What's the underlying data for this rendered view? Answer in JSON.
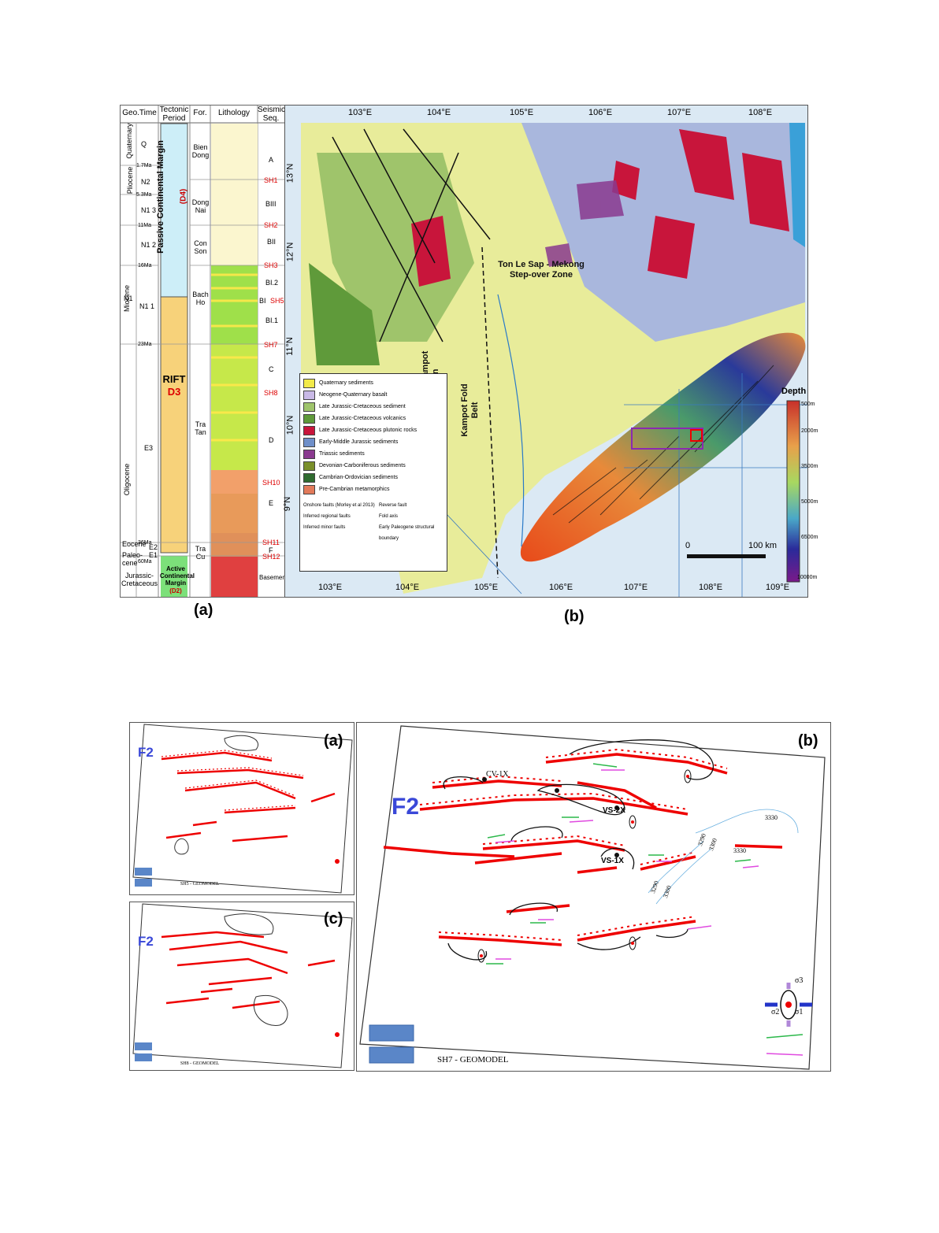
{
  "fig1": {
    "label_a": "(a)",
    "label_b": "(b)",
    "columns": [
      "Geo.Time",
      "Tectonic Period",
      "For.",
      "Lithology",
      "Seismic Seq."
    ],
    "eras": [
      "Quaternary",
      "Pliocene",
      "Miocene",
      "Oligocene",
      "Eocene",
      "Paleo-cene",
      "Jurassic-Cretaceous"
    ],
    "miocene_n1": "N1",
    "time_units": [
      "Q",
      "N2",
      "N1 3",
      "N1 2",
      "N1 1",
      "E3",
      "E2",
      "E1"
    ],
    "ages": [
      "1.7Ma",
      "5.3Ma",
      "11Ma",
      "16Ma",
      "23Ma",
      "36Ma",
      "60Ma"
    ],
    "tectonic": {
      "passive": "Passive Continental Margin",
      "d4": "(D4)",
      "rift": "RIFT",
      "d3": "D3",
      "active": "Active Continental Margin",
      "d2": "(D2)"
    },
    "formations": [
      "Bien Dong",
      "Dong Nai",
      "Con Son",
      "Bach Ho",
      "Tra Tan",
      "Tra Cu"
    ],
    "seqs": [
      "A",
      "BIII",
      "BII",
      "BI.2",
      "BI",
      "BI.1",
      "C",
      "D",
      "E",
      "F",
      "Basement"
    ],
    "sh": [
      "SH1",
      "SH2",
      "SH3",
      "SH5",
      "SH7",
      "SH8",
      "SH10",
      "SH11",
      "SH12"
    ],
    "lon_ticks": [
      "103°E",
      "104°E",
      "105°E",
      "106°E",
      "107°E",
      "108°E",
      "109°E"
    ],
    "lat_ticks": [
      "13°N",
      "12°N",
      "11°N",
      "10°N",
      "9°N"
    ],
    "map_labels": {
      "stepover": "Ton Le Sap - Mekong Step-over Zone",
      "phu_quoc": "Phu Quoc - Kampot Som Basin",
      "kampot": "Kampot Fold Belt"
    },
    "legend_items": [
      {
        "label": "Quaternary sediments",
        "color": "#f2ea4a"
      },
      {
        "label": "Neogene-Quaternary basalt",
        "color": "#c9b9e6"
      },
      {
        "label": "Late Jurassic-Cretaceous sediment",
        "color": "#9fc46b"
      },
      {
        "label": "Late Jurassic-Cretaceous volcanics",
        "color": "#5f9a3a"
      },
      {
        "label": "Late Jurassic-Cretaceous plutonic rocks",
        "color": "#c8153b"
      },
      {
        "label": "Early-Middle Jurassic sediments",
        "color": "#6f8fc9"
      },
      {
        "label": "Triassic sediments",
        "color": "#8a3a8f"
      },
      {
        "label": "Devonian-Carboniferous sediments",
        "color": "#7a8f2a"
      },
      {
        "label": "Cambrian-Ordovician sediments",
        "color": "#2f6b2f"
      },
      {
        "label": "Pre-Cambrian metamorphics",
        "color": "#e27a5a"
      }
    ],
    "legend_lines": [
      "Onshore faults (Morley et al 2013)",
      "Inferred regional faults",
      "Inferred minor faults",
      "Reverse fault",
      "Fold axis",
      "Early Paleogene structural boundary"
    ],
    "depth_title": "Depth",
    "depth_ticks": [
      "500m",
      "2000m",
      "3500m",
      "5000m",
      "6500m",
      "10000m"
    ],
    "scale": {
      "zero": "0",
      "dist": "100 km"
    }
  },
  "fig2": {
    "panel_a": {
      "label": "(a)",
      "f2": "F2",
      "caption": "SH5 - GEOMODEL"
    },
    "panel_c": {
      "label": "(c)",
      "f2": "F2",
      "caption": "SH8 - GEOMODEL"
    },
    "panel_b": {
      "label": "(b)",
      "f2": "F2",
      "caption": "SH7 - GEOMODEL",
      "wells": [
        "CV-1X",
        "VS-2X",
        "VS-1X"
      ],
      "contours": [
        "3330",
        "3290",
        "3300",
        "3330",
        "3290",
        "3300"
      ],
      "sigma": [
        "σ3",
        "σ2",
        "σ1"
      ]
    }
  }
}
